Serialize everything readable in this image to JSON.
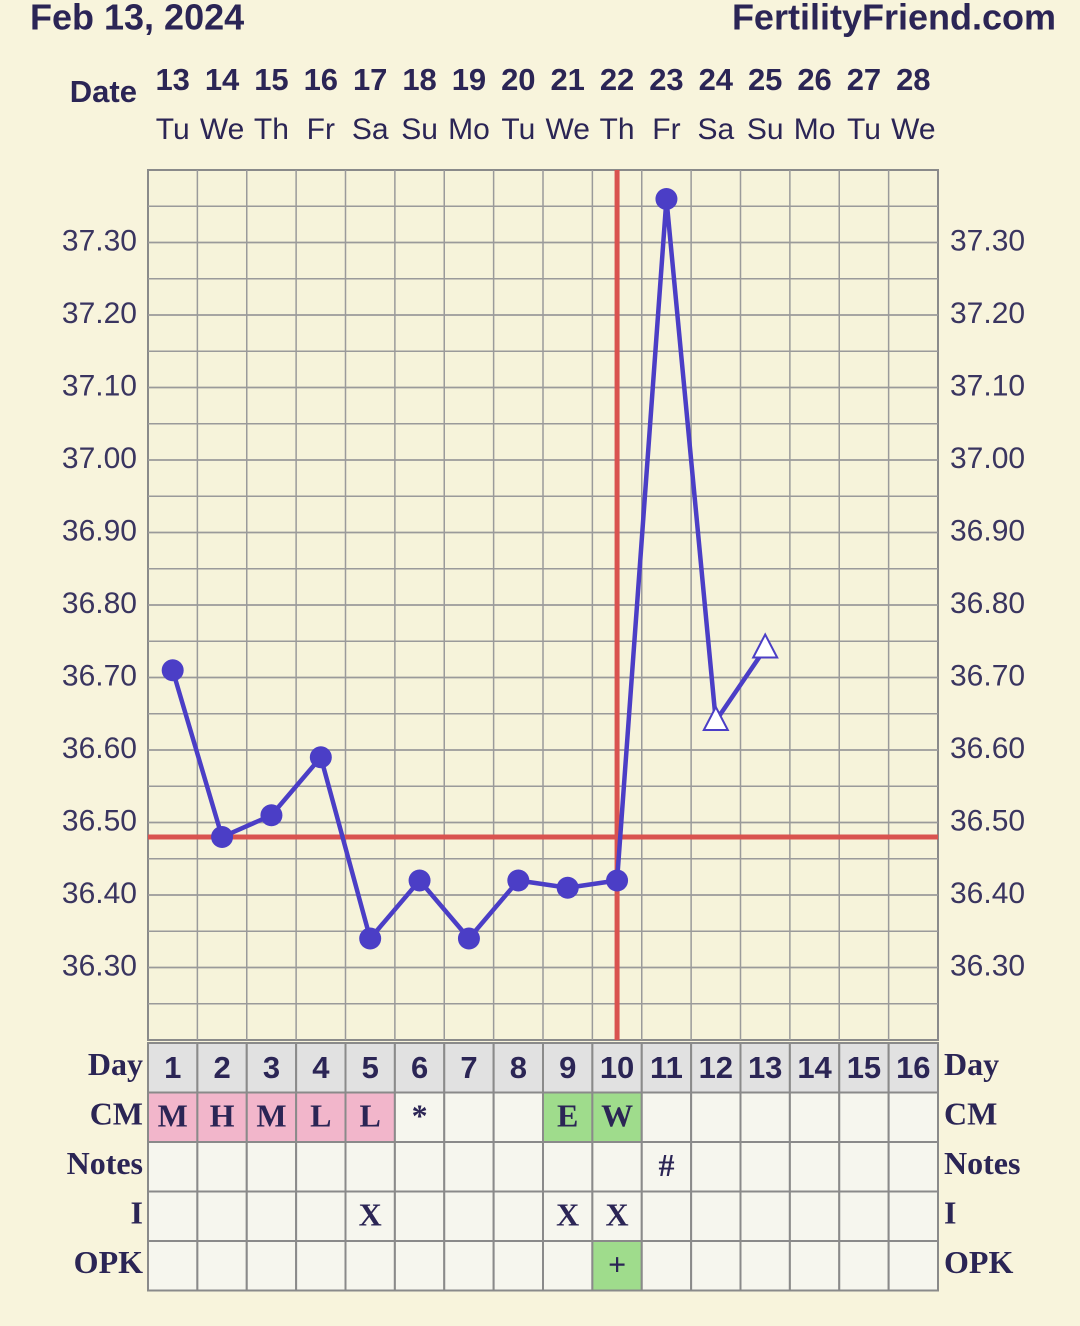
{
  "chart_data": {
    "type": "line",
    "title": "Feb 13, 2024",
    "source": "FertilityFriend.com",
    "date_label": "Date",
    "dates": [
      13,
      14,
      15,
      16,
      17,
      18,
      19,
      20,
      21,
      22,
      23,
      24,
      25,
      26,
      27,
      28
    ],
    "weekdays": [
      "Tu",
      "We",
      "Th",
      "Fr",
      "Sa",
      "Su",
      "Mo",
      "Tu",
      "We",
      "Th",
      "Fr",
      "Sa",
      "Su",
      "Mo",
      "Tu",
      "We"
    ],
    "series": [
      {
        "color": "#4b3ec6",
        "values": [
          36.71,
          36.48,
          36.51,
          36.59,
          36.34,
          36.42,
          36.34,
          36.42,
          36.41,
          36.42,
          37.36,
          36.64,
          36.74,
          null,
          null,
          null
        ],
        "markers": [
          "circle",
          "circle",
          "circle",
          "circle",
          "circle",
          "circle",
          "circle",
          "circle",
          "circle",
          "circle",
          "circle",
          "triangle",
          "triangle",
          null,
          null,
          null
        ]
      }
    ],
    "ylim": [
      36.2,
      37.4
    ],
    "yticks": [
      {
        "value": 36.3,
        "label": "36.30"
      },
      {
        "value": 36.4,
        "label": "36.40"
      },
      {
        "value": 36.5,
        "label": "36.50"
      },
      {
        "value": 36.6,
        "label": "36.60"
      },
      {
        "value": 36.7,
        "label": "36.70"
      },
      {
        "value": 36.8,
        "label": "36.80"
      },
      {
        "value": 36.9,
        "label": "36.90"
      },
      {
        "value": 37.0,
        "label": "37.00"
      },
      {
        "value": 37.1,
        "label": "37.10"
      },
      {
        "value": 37.2,
        "label": "37.20"
      },
      {
        "value": 37.3,
        "label": "37.30"
      }
    ],
    "grid": true,
    "grid_step": 0.05,
    "coverline": {
      "value": 36.48,
      "color": "#d9534f"
    },
    "ovulation_day": 10,
    "ovulation_color": "#d9534f",
    "table": {
      "rows": [
        {
          "label": "Day",
          "cells": [
            1,
            2,
            3,
            4,
            5,
            6,
            7,
            8,
            9,
            10,
            11,
            12,
            13,
            14,
            15,
            16
          ],
          "colors": null
        },
        {
          "label": "CM",
          "cells": [
            "M",
            "H",
            "M",
            "L",
            "L",
            "*",
            null,
            null,
            "E",
            "W",
            null,
            null,
            null,
            null,
            null,
            null
          ],
          "colors": [
            "#f2b6cb",
            "#f2b6cb",
            "#f2b6cb",
            "#f2b6cb",
            "#f2b6cb",
            null,
            null,
            null,
            "#9fdc8c",
            "#9fdc8c",
            null,
            null,
            null,
            null,
            null,
            null
          ]
        },
        {
          "label": "Notes",
          "cells": [
            null,
            null,
            null,
            null,
            null,
            null,
            null,
            null,
            null,
            null,
            "#",
            null,
            null,
            null,
            null,
            null
          ],
          "colors": null
        },
        {
          "label": "I",
          "cells": [
            null,
            null,
            null,
            null,
            "X",
            null,
            null,
            null,
            "X",
            "X",
            null,
            null,
            null,
            null,
            null,
            null
          ],
          "colors": null
        },
        {
          "label": "OPK",
          "cells": [
            null,
            null,
            null,
            null,
            null,
            null,
            null,
            null,
            null,
            "+",
            null,
            null,
            null,
            null,
            null,
            null
          ],
          "colors": [
            null,
            null,
            null,
            null,
            null,
            null,
            null,
            null,
            null,
            "#9fdc8c",
            null,
            null,
            null,
            null,
            null,
            null
          ]
        }
      ]
    }
  }
}
